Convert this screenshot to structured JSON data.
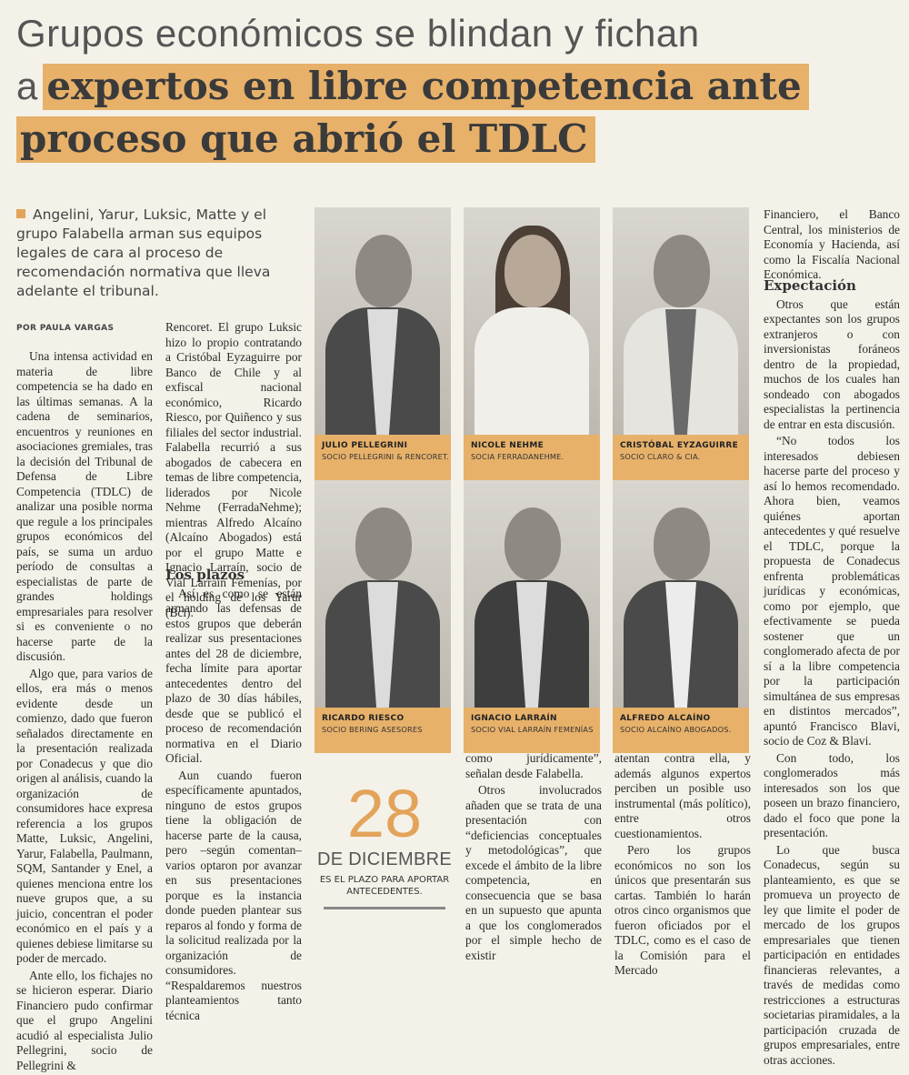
{
  "headline": {
    "line1": "Grupos económicos se blindan y fichan",
    "line2_prefix": "a",
    "line2_highlight": "expertos en libre competencia ante",
    "line3_highlight": "proceso que abrió el TDLC"
  },
  "lead": "Angelini, Yarur, Luksic, Matte y el grupo Falabella arman sus equipos legales de cara al proceso de recomendación normativa que lleva adelante el tribunal.",
  "byline": "POR PAULA VARGAS",
  "col1": [
    "Una intensa actividad en materia de libre competencia se ha dado en las últimas semanas. A la cadena de seminarios, encuentros y reuniones en asociaciones gremiales, tras la decisión del Tribunal de Defensa de Libre Competencia (TDLC) de analizar una posible norma que regule a los principales grupos económicos del país, se suma un arduo período de consultas a especialistas de parte de grandes holdings empresariales para resolver si es conveniente o no hacerse parte de la discusión.",
    "Algo que, para varios de ellos, era más o menos evidente desde un comienzo, dado que fueron señalados directamente en la presentación realizada por Conadecus y que dio origen al análisis, cuando la organización de consumidores hace expresa referencia a los grupos Matte, Luksic, Angelini, Yarur, Falabella, Paulmann, SQM, Santander y Enel, a quienes menciona entre los nueve grupos que, a su juicio, concentran el poder económico en el país y a quienes debiese limitarse su poder de mercado.",
    "Ante ello, los fichajes no se hicieron esperar. Diario Financiero pudo confirmar que el grupo Angelini acudió al especialista Julio Pellegrini, socio de Pellegrini &"
  ],
  "col2": [
    "Rencoret. El grupo Luksic hizo lo propio contratando a Cristóbal Eyzaguirre por Banco de Chile y al exfiscal nacional económico, Ricardo Riesco, por Quiñenco y sus filiales del sector industrial. Falabella recurrió a sus abogados de cabecera en temas de libre competencia, liderados por Nicole Nehme (FerradaNehme); mientras Alfredo Alcaíno (Alcaíno Abogados) está por el grupo Matte e Ignacio Larraín, socio de Vial Larraín Femenías, por el holding de los Yarur (Bci)."
  ],
  "col2b": {
    "heading": "Los plazos",
    "paragraphs": [
      "Así es como se están armando las defensas de estos grupos que deberán realizar sus presentaciones antes del 28 de diciembre, fecha límite para aportar antecedentes dentro del plazo de 30 días hábiles, desde que se publicó el proceso de recomendación normativa en el Diario Oficial.",
      "Aun cuando fueron específicamente apuntados, ninguno de estos grupos tiene la obligación de hacerse parte de la causa, pero –según comentan– varios optaron por avanzar en sus presentaciones porque es la instancia donde pueden plantear sus reparos al fondo y forma de la solicitud realizada por la organización de consumidores. “Respaldaremos nuestros planteamientos tanto técnica"
    ]
  },
  "col3": [
    "como jurídicamente”, señalan desde Falabella.",
    "Otros involucrados añaden que se trata de una presentación con “deficiencias conceptuales y metodológicas”, que excede el ámbito de la libre competencia, en consecuencia que se basa en un supuesto que apunta a que los conglomerados por el simple hecho de existir"
  ],
  "col4": [
    "atentan contra ella, y además algunos expertos perciben un posible uso instrumental (más político), entre otros cuestionamientos.",
    "Pero los grupos económicos no son los únicos que presentarán sus cartas. También lo harán otros cinco organismos que fueron oficiados por el TDLC, como es el caso de la Comisión para el Mercado"
  ],
  "col5": [
    "Financiero, el Banco Central, los ministerios de Economía y Hacienda, así como la Fiscalía Nacional Económica."
  ],
  "col5b": {
    "heading": "Expectación",
    "paragraphs": [
      "Otros que están expectantes son los grupos extranjeros o con inversionistas foráneos dentro de la propiedad, muchos de los cuales han sondeado con abogados especialistas la pertinencia de entrar en esta discusión.",
      "“No todos los interesados debiesen hacerse parte del proceso y así lo hemos recomendado. Ahora bien, veamos quiénes aportan antecedentes y qué resuelve el TDLC, porque la propuesta de Conadecus enfrenta problemáticas jurídicas y económicas, como por ejemplo, que efectivamente se pueda sostener que un conglomerado afecta de por sí a la libre competencia por la participación simultánea de sus empresas en distintos mercados”, apuntó Francisco Blavi, socio de Coz & Blavi.",
      "Con todo, los conglomerados más interesados son los que poseen un brazo financiero, dado el foco que pone la presentación.",
      "Lo que busca Conadecus, según su planteamiento, es que se promueva un proyecto de ley que limite el poder de mercado de los grupos empresariales que tienen participación en entidades financieras relevantes, a través de medidas como restricciones a estructuras societarias piramidales, a la participación cruzada de grupos empresariales, entre otras acciones."
    ]
  },
  "portraits": [
    {
      "name": "JULIO PELLEGRINI",
      "role": "SOCIO PELLEGRINI & RENCORET."
    },
    {
      "name": "NICOLE NEHME",
      "role": "SOCIA FERRADANEHME."
    },
    {
      "name": "CRISTÓBAL EYZAGUIRRE",
      "role": "SOCIO CLARO & CIA."
    },
    {
      "name": "RICARDO RIESCO",
      "role": "SOCIO BERING ASESORES"
    },
    {
      "name": "IGNACIO LARRAÍN",
      "role": "SOCIO VIAL LARRAÍN FEMENÍAS"
    },
    {
      "name": "ALFREDO ALCAÍNO",
      "role": "SOCIO ALCAÍNO ABOGADOS."
    }
  ],
  "callout": {
    "number": "28",
    "month": "DE DICIEMBRE",
    "text": "ES EL PLAZO PARA APORTAR ANTECEDENTES."
  }
}
